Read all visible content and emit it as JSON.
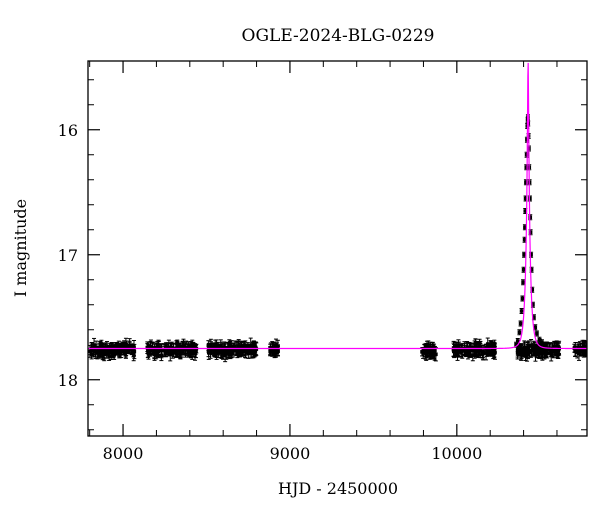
{
  "chart_data": {
    "type": "scatter",
    "title": "OGLE-2024-BLG-0229",
    "xlabel": "HJD - 2450000",
    "ylabel": "I magnitude",
    "xlim": [
      7790,
      10780
    ],
    "ylim": [
      18.45,
      15.45
    ],
    "y_inverted": true,
    "x_ticks": [
      8000,
      9000,
      10000
    ],
    "x_tick_labels": [
      "8000",
      "9000",
      "10000"
    ],
    "y_ticks": [
      16,
      17,
      18
    ],
    "y_tick_labels": [
      "16",
      "17",
      "18"
    ],
    "x_minor_step": 200,
    "y_minor_step": 0.2,
    "baseline_magnitude": 17.75,
    "colors": {
      "data": "#000000",
      "model": "#ff00ff",
      "axes": "#000000"
    },
    "series": [
      {
        "kind": "observations",
        "style": "points-with-errorbars",
        "seasons": [
          {
            "x_start": 7800,
            "x_end": 8070,
            "y_center": 17.76,
            "y_scatter": 0.05
          },
          {
            "x_start": 8145,
            "x_end": 8440,
            "y_center": 17.76,
            "y_scatter": 0.05
          },
          {
            "x_start": 8510,
            "x_end": 8800,
            "y_center": 17.76,
            "y_scatter": 0.05
          },
          {
            "x_start": 8880,
            "x_end": 8930,
            "y_center": 17.76,
            "y_scatter": 0.04
          },
          {
            "x_start": 9790,
            "x_end": 9880,
            "y_center": 17.77,
            "y_scatter": 0.05
          },
          {
            "x_start": 9980,
            "x_end": 10230,
            "y_center": 17.76,
            "y_scatter": 0.05
          },
          {
            "x_start": 10360,
            "x_end": 10620,
            "y_center": 17.76,
            "y_scatter": 0.05
          },
          {
            "x_start": 10700,
            "x_end": 10780,
            "y_center": 17.76,
            "y_scatter": 0.04
          }
        ],
        "event_points": [
          [
            10355,
            17.72
          ],
          [
            10365,
            17.69
          ],
          [
            10375,
            17.62
          ],
          [
            10382,
            17.55
          ],
          [
            10388,
            17.45
          ],
          [
            10393,
            17.35
          ],
          [
            10397,
            17.22
          ],
          [
            10400,
            17.12
          ],
          [
            10403,
            17.0
          ],
          [
            10406,
            16.88
          ],
          [
            10408,
            16.78
          ],
          [
            10410,
            16.65
          ],
          [
            10412,
            16.55
          ],
          [
            10414,
            16.42
          ],
          [
            10416,
            16.3
          ],
          [
            10418,
            16.2
          ],
          [
            10420,
            16.08
          ],
          [
            10422,
            15.97
          ],
          [
            10424,
            15.92
          ],
          [
            10426,
            15.9
          ],
          [
            10428,
            15.95
          ],
          [
            10430,
            16.05
          ],
          [
            10432,
            16.15
          ],
          [
            10434,
            16.3
          ],
          [
            10436,
            16.42
          ],
          [
            10438,
            16.55
          ],
          [
            10440,
            16.7
          ],
          [
            10442,
            16.82
          ],
          [
            10445,
            17.0
          ],
          [
            10448,
            17.12
          ],
          [
            10452,
            17.28
          ],
          [
            10456,
            17.4
          ],
          [
            10462,
            17.5
          ],
          [
            10470,
            17.58
          ],
          [
            10480,
            17.63
          ],
          [
            10495,
            17.68
          ],
          [
            10510,
            17.7
          ],
          [
            10530,
            17.72
          ]
        ]
      },
      {
        "kind": "model",
        "style": "line",
        "t0": 10427,
        "tE": 24,
        "u0": 0.12,
        "baseline": 17.75
      }
    ]
  }
}
